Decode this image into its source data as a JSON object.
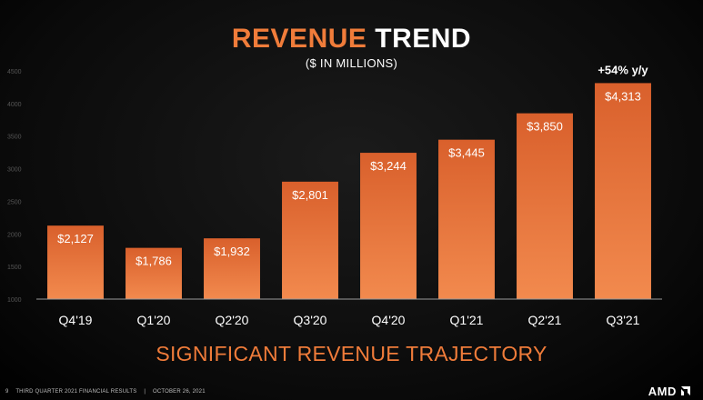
{
  "slide": {
    "title_accent": "REVENUE",
    "title_rest": "TREND",
    "subtitle": "($ IN MILLIONS)",
    "tagline": "SIGNIFICANT REVENUE TRAJECTORY",
    "footer": {
      "page_number": "9",
      "report": "THIRD QUARTER 2021 FINANCIAL RESULTS",
      "separator": "|",
      "date": "OCTOBER 26, 2021"
    },
    "logo_text": "AMD",
    "colors": {
      "accent": "#f07c3a",
      "bar_top": "#d9602c",
      "bar_bottom": "#f28a4e"
    }
  },
  "chart_data": {
    "type": "bar",
    "title": "REVENUE TREND",
    "subtitle": "($ IN MILLIONS)",
    "categories": [
      "Q4'19",
      "Q1'20",
      "Q2'20",
      "Q3'20",
      "Q4'20",
      "Q1'21",
      "Q2'21",
      "Q3'21"
    ],
    "values": [
      2127,
      1786,
      1932,
      2801,
      3244,
      3445,
      3850,
      4313
    ],
    "value_labels": [
      "$2,127",
      "$1,786",
      "$1,932",
      "$2,801",
      "$3,244",
      "$3,445",
      "$3,850",
      "$4,313"
    ],
    "annotation": {
      "category": "Q3'21",
      "text": "+54% y/y"
    },
    "yticks": [
      1000,
      1500,
      2000,
      2500,
      3000,
      3500,
      4000,
      4500
    ],
    "ylim": [
      1000,
      4500
    ],
    "grid": false,
    "xlabel": "",
    "ylabel": ""
  }
}
